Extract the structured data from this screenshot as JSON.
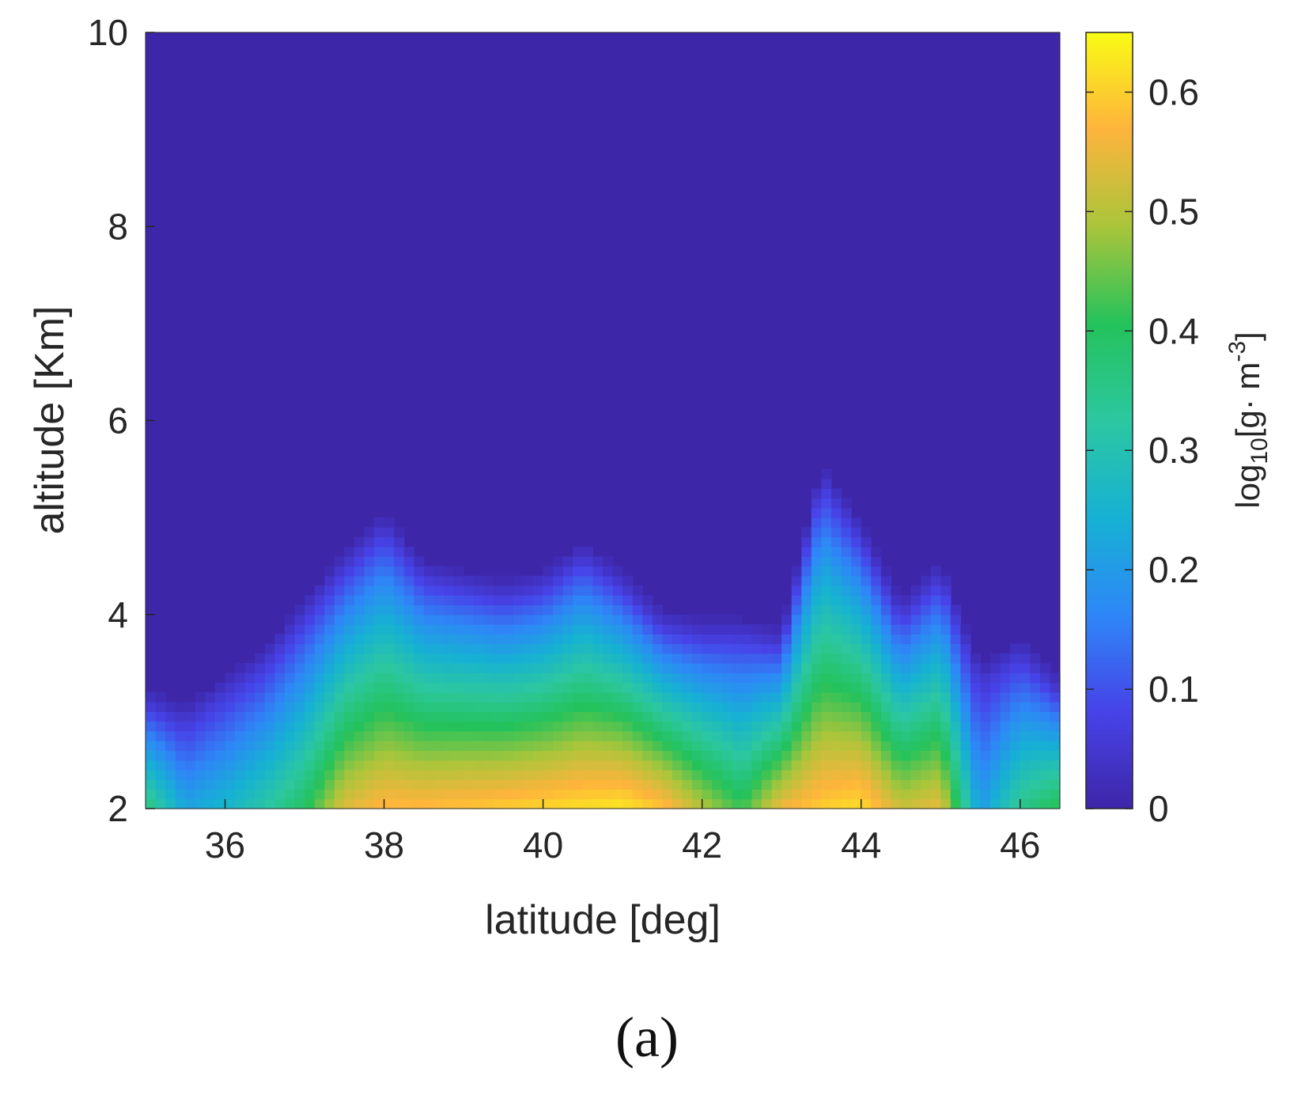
{
  "chart_data": {
    "type": "heatmap",
    "title": "",
    "xlabel": "latitude [deg]",
    "ylabel": "altitude [Km]",
    "xlim": [
      35,
      46.5
    ],
    "ylim": [
      2,
      10
    ],
    "xticks": [
      36,
      38,
      40,
      42,
      44,
      46
    ],
    "yticks": [
      2,
      4,
      6,
      8,
      10
    ],
    "colorbar": {
      "label_base": "log",
      "label_sub": "10",
      "label_main": "[g· m",
      "label_sup": "-3",
      "label_end": "]",
      "colormap": "parula",
      "range": [
        0,
        0.65
      ],
      "ticks": [
        0,
        0.1,
        0.2,
        0.3,
        0.4,
        0.5,
        0.6
      ]
    },
    "colors": {
      "background_value_color": "#3e26a8",
      "stops": [
        "#3e26a8",
        "#4743e8",
        "#2e87f7",
        "#16b1d3",
        "#2cc7a0",
        "#24c25b",
        "#aac53b",
        "#feb43c",
        "#f9fb15"
      ]
    },
    "profiles": {
      "lat": [
        35.0,
        35.5,
        36.0,
        36.5,
        37.0,
        37.5,
        38.0,
        38.5,
        39.0,
        39.5,
        40.0,
        40.5,
        41.0,
        41.5,
        42.0,
        42.5,
        43.0,
        43.5,
        44.0,
        44.5,
        45.0,
        45.5,
        46.0,
        46.5
      ],
      "top_km": [
        3.1,
        2.9,
        3.2,
        3.5,
        4.0,
        4.5,
        4.9,
        4.4,
        4.3,
        4.2,
        4.3,
        4.6,
        4.3,
        3.9,
        3.8,
        3.8,
        3.7,
        5.4,
        4.8,
        4.0,
        4.4,
        3.3,
        3.6,
        3.2
      ],
      "peak_value": [
        0.38,
        0.22,
        0.26,
        0.32,
        0.4,
        0.54,
        0.58,
        0.58,
        0.59,
        0.6,
        0.61,
        0.62,
        0.63,
        0.59,
        0.5,
        0.42,
        0.56,
        0.6,
        0.62,
        0.52,
        0.55,
        0.2,
        0.35,
        0.42
      ]
    },
    "panel_label": "(a)"
  }
}
